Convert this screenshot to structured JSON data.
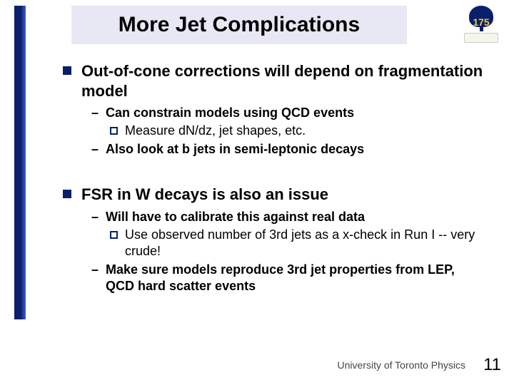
{
  "title": "More Jet Complications",
  "logo": {
    "number": "175"
  },
  "sections": [
    {
      "heading": "Out-of-cone corrections will depend on fragmentation model",
      "subs": [
        {
          "text": "Can constrain models using QCD events",
          "subsubs": [
            {
              "text": "Measure dN/dz, jet shapes, etc."
            }
          ]
        },
        {
          "text": "Also look at b jets in semi-leptonic decays",
          "subsubs": []
        }
      ]
    },
    {
      "heading": "FSR in W decays is also an issue",
      "subs": [
        {
          "text": "Will have to calibrate this against real data",
          "subsubs": [
            {
              "text": "Use observed number of 3rd jets as a x-check in Run I  -- very crude!"
            }
          ]
        },
        {
          "text": "Make sure models reproduce 3rd jet properties from LEP, QCD hard scatter events",
          "subsubs": []
        }
      ]
    }
  ],
  "footer": "University of Toronto Physics",
  "page_number": "11"
}
